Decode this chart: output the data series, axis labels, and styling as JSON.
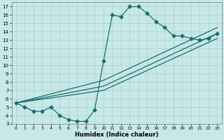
{
  "xlabel": "Humidex (Indice chaleur)",
  "bg_color": "#c8e8e8",
  "line_color": "#1a6e6e",
  "grid_color": "#a8d0d0",
  "xlim": [
    -0.5,
    23.5
  ],
  "ylim": [
    3,
    17.5
  ],
  "xticks": [
    0,
    1,
    2,
    3,
    4,
    5,
    6,
    7,
    8,
    9,
    10,
    11,
    12,
    13,
    14,
    15,
    16,
    17,
    18,
    19,
    20,
    21,
    22,
    23
  ],
  "yticks": [
    3,
    4,
    5,
    6,
    7,
    8,
    9,
    10,
    11,
    12,
    13,
    14,
    15,
    16,
    17
  ],
  "main_x": [
    0,
    1,
    2,
    3,
    4,
    5,
    6,
    7,
    8,
    9,
    10,
    11,
    12,
    13,
    14,
    15,
    16,
    17,
    18,
    19,
    20,
    21,
    22,
    23
  ],
  "main_y": [
    5.5,
    5.0,
    4.5,
    4.5,
    5.0,
    4.0,
    3.5,
    3.3,
    3.3,
    4.7,
    10.5,
    16.0,
    15.8,
    17.0,
    17.0,
    16.2,
    15.2,
    14.5,
    13.5,
    13.5,
    13.2,
    13.0,
    13.2,
    13.8
  ],
  "trend_lines": [
    {
      "x": [
        0,
        10,
        23
      ],
      "y": [
        5.5,
        7.5,
        13.8
      ]
    },
    {
      "x": [
        0,
        10,
        23
      ],
      "y": [
        5.5,
        8.2,
        14.5
      ]
    },
    {
      "x": [
        0,
        10,
        23
      ],
      "y": [
        5.5,
        7.0,
        13.2
      ]
    }
  ],
  "marker_size": 2.5,
  "linewidth": 0.9
}
